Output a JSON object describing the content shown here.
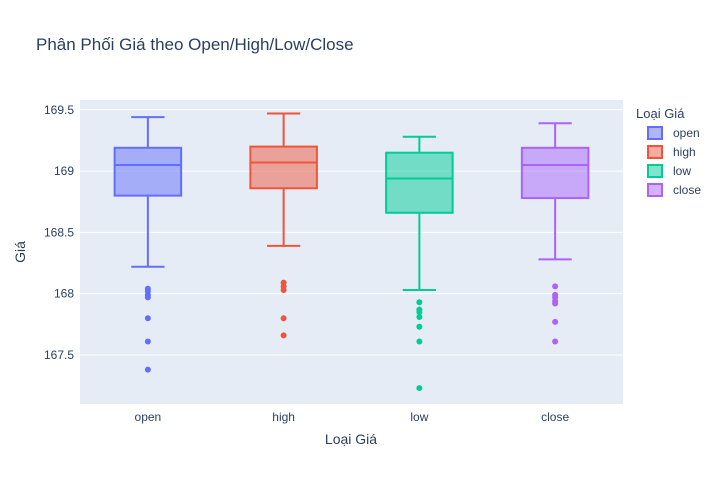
{
  "chart_data": {
    "type": "box",
    "title": "Phân Phối Giá theo Open/High/Low/Close",
    "xlabel": "Loại Giá",
    "ylabel": "Giá",
    "ylim": [
      167.1,
      169.58
    ],
    "yticks": [
      167.5,
      168,
      168.5,
      169,
      169.5
    ],
    "ytick_labels": [
      "167.5",
      "168",
      "168.5",
      "169",
      "169.5"
    ],
    "grid": true,
    "legend_title": "Loại Giá",
    "legend_position": "top-right",
    "categories": [
      "open",
      "high",
      "low",
      "close"
    ],
    "series": [
      {
        "name": "open",
        "color": "#636efa",
        "min": 168.22,
        "q1": 168.8,
        "median": 169.05,
        "q3": 169.19,
        "max": 169.44,
        "outliers": [
          168.04,
          168.02,
          167.99,
          167.97,
          167.8,
          167.61,
          167.38
        ]
      },
      {
        "name": "high",
        "color": "#ef553b",
        "min": 168.39,
        "q1": 168.86,
        "median": 169.07,
        "q3": 169.2,
        "max": 169.47,
        "outliers": [
          168.09,
          168.06,
          168.03,
          167.8,
          167.66
        ]
      },
      {
        "name": "low",
        "color": "#00cc96",
        "min": 168.03,
        "q1": 168.66,
        "median": 168.94,
        "q3": 169.15,
        "max": 169.28,
        "outliers": [
          167.93,
          167.87,
          167.85,
          167.81,
          167.73,
          167.61,
          167.23
        ]
      },
      {
        "name": "close",
        "color": "#ab63fa",
        "min": 168.28,
        "q1": 168.78,
        "median": 169.05,
        "q3": 169.19,
        "max": 169.39,
        "outliers": [
          168.06,
          167.99,
          167.97,
          167.94,
          167.92,
          167.77,
          167.61
        ]
      }
    ]
  },
  "colors": {
    "plot_bg": "#e5ecf6",
    "grid": "#ffffff",
    "text": "#2a3f5f"
  }
}
